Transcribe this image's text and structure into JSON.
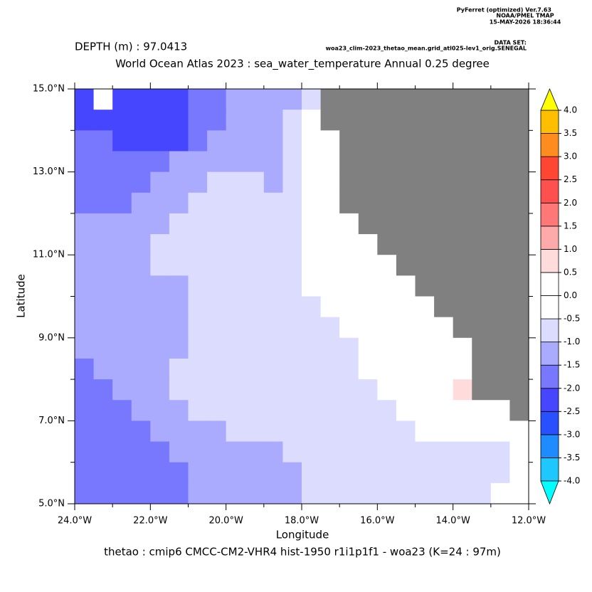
{
  "chart_data": {
    "type": "heatmap",
    "header": [
      "PyFerret (optimized) Ver.7.63",
      "NOAA/PMEL TMAP",
      "15-MAY-2026 18:36:44"
    ],
    "dataset_label": "DATA SET:",
    "dataset": "woa23_clim-2023_thetao_mean.grid_atl025-lev1_orig.SENEGAL",
    "subtitle": "DEPTH (m) : 97.0413",
    "title": "World Ocean Atlas 2023 : sea_water_temperature Annual  0.25 degree",
    "xlabel": "Longitude",
    "ylabel": "Latitude",
    "footer": "thetao : cmip6 CMCC-CM2-VHR4 hist-1950 r1i1p1f1 - woa23  (K=24 : 97m)",
    "xlim": [
      -24,
      -12
    ],
    "ylim": [
      5,
      15
    ],
    "xticks": [
      {
        "value": -24,
        "label": "24.0°W"
      },
      {
        "value": -22,
        "label": "22.0°W"
      },
      {
        "value": -20,
        "label": "20.0°W"
      },
      {
        "value": -18,
        "label": "18.0°W"
      },
      {
        "value": -16,
        "label": "16.0°W"
      },
      {
        "value": -14,
        "label": "14.0°W"
      },
      {
        "value": -12,
        "label": "12.0°W"
      }
    ],
    "xminorticks": [
      -23,
      -21,
      -19,
      -17,
      -15,
      -13
    ],
    "yticks": [
      {
        "value": 5,
        "label": "5.0°N"
      },
      {
        "value": 7,
        "label": "7.0°N"
      },
      {
        "value": 9,
        "label": "9.0°N"
      },
      {
        "value": 11,
        "label": "11.0°N"
      },
      {
        "value": 13,
        "label": "13.0°N"
      },
      {
        "value": 15,
        "label": "15.0°N"
      }
    ],
    "yminorticks": [
      6,
      8,
      10,
      12,
      14
    ],
    "missing_color": "#808080",
    "levels": [
      {
        "value": -4,
        "label": "-4.0"
      },
      {
        "value": -3.5,
        "label": "-3.5"
      },
      {
        "value": -3,
        "label": "-3.0"
      },
      {
        "value": -2.5,
        "label": "-2.5"
      },
      {
        "value": -2,
        "label": "-2.0"
      },
      {
        "value": -1.5,
        "label": "-1.5"
      },
      {
        "value": -1,
        "label": "-1.0"
      },
      {
        "value": -0.5,
        "label": "-0.5"
      },
      {
        "value": 0,
        "label": "0.0"
      },
      {
        "value": 0.5,
        "label": "0.5"
      },
      {
        "value": 1,
        "label": "1.0"
      },
      {
        "value": 1.5,
        "label": "1.5"
      },
      {
        "value": 2,
        "label": "2.0"
      },
      {
        "value": 2.5,
        "label": "2.5"
      },
      {
        "value": 3,
        "label": "3.0"
      },
      {
        "value": 3.5,
        "label": "3.5"
      },
      {
        "value": 4,
        "label": "4.0"
      }
    ],
    "colors": [
      "#00ffff",
      "#1ec8ff",
      "#1e8cff",
      "#2850ff",
      "#4646ff",
      "#7878ff",
      "#aaaaff",
      "#dcdcff",
      "#ffffff",
      "#ffffff",
      "#ffdcdc",
      "#ffaaaa",
      "#ff7878",
      "#ff5050",
      "#ff4632",
      "#ff8c1e",
      "#ffbe00",
      "#ffff00"
    ],
    "x": [
      -23.75,
      -23.25,
      -22.75,
      -22.25,
      -21.75,
      -21.25,
      -20.75,
      -20.25,
      -19.75,
      -19.25,
      -18.75,
      -18.25,
      -17.75,
      -17.25,
      -16.75,
      -16.25,
      -15.75,
      -15.25,
      -14.75,
      -14.25,
      -13.75,
      -13.25,
      -12.75,
      -12.25
    ],
    "y": [
      14.75,
      14.25,
      13.75,
      13.25,
      12.75,
      12.25,
      11.75,
      11.25,
      10.75,
      10.25,
      9.75,
      9.25,
      8.75,
      8.25,
      7.75,
      7.25,
      6.75,
      6.25,
      5.75,
      5.25
    ],
    "z": [
      [
        -2.25,
        -0.25,
        -2.25,
        -2.25,
        -2.25,
        -2.25,
        -1.75,
        -1.75,
        -1.25,
        -1.25,
        -1.25,
        -1.25,
        -0.75,
        null,
        null,
        null,
        null,
        null,
        null,
        null,
        null,
        null,
        null,
        null
      ],
      [
        -2.25,
        -2.25,
        -2.25,
        -2.25,
        -2.25,
        -2.25,
        -1.75,
        -1.75,
        -1.25,
        -1.25,
        -1.25,
        -0.75,
        -0.25,
        null,
        null,
        null,
        null,
        null,
        null,
        null,
        null,
        null,
        null,
        null
      ],
      [
        -1.75,
        -1.75,
        -2.25,
        -2.25,
        -2.25,
        -2.25,
        -1.75,
        -1.25,
        -1.25,
        -1.25,
        -1.25,
        -0.75,
        -0.25,
        -0.25,
        null,
        null,
        null,
        null,
        null,
        null,
        null,
        null,
        null,
        null
      ],
      [
        -1.75,
        -1.75,
        -1.75,
        -1.75,
        -1.75,
        -1.25,
        -1.25,
        -1.25,
        -1.25,
        -1.25,
        -1.25,
        -0.75,
        -0.25,
        -0.25,
        null,
        null,
        null,
        null,
        null,
        null,
        null,
        null,
        null,
        null
      ],
      [
        -1.75,
        -1.75,
        -1.75,
        -1.75,
        -1.25,
        -1.25,
        -1.25,
        -0.75,
        -0.75,
        -0.75,
        -1.25,
        -0.75,
        -0.25,
        -0.25,
        null,
        null,
        null,
        null,
        null,
        null,
        null,
        null,
        null,
        null
      ],
      [
        -1.75,
        -1.75,
        -1.75,
        -1.25,
        -1.25,
        -1.25,
        -0.75,
        -0.75,
        -0.75,
        -0.75,
        -0.75,
        -0.75,
        -0.25,
        -0.25,
        null,
        null,
        null,
        null,
        null,
        null,
        null,
        null,
        null,
        null
      ],
      [
        -1.25,
        -1.25,
        -1.25,
        -1.25,
        -1.25,
        -0.75,
        -0.75,
        -0.75,
        -0.75,
        -0.75,
        -0.75,
        -0.75,
        -0.25,
        -0.25,
        -0.25,
        null,
        null,
        null,
        null,
        null,
        null,
        null,
        null,
        null
      ],
      [
        -1.25,
        -1.25,
        -1.25,
        -1.25,
        -0.75,
        -0.75,
        -0.75,
        -0.75,
        -0.75,
        -0.75,
        -0.75,
        -0.75,
        -0.25,
        -0.25,
        -0.25,
        -0.25,
        null,
        null,
        null,
        null,
        null,
        null,
        null,
        null
      ],
      [
        -1.25,
        -1.25,
        -1.25,
        -1.25,
        -0.75,
        -0.75,
        -0.75,
        -0.75,
        -0.75,
        -0.75,
        -0.75,
        -0.75,
        -0.25,
        -0.25,
        -0.25,
        -0.25,
        -0.25,
        null,
        null,
        null,
        null,
        null,
        null,
        null
      ],
      [
        -1.25,
        -1.25,
        -1.25,
        -1.25,
        -1.25,
        -1.25,
        -0.75,
        -0.75,
        -0.75,
        -0.75,
        -0.75,
        -0.75,
        -0.25,
        -0.25,
        -0.25,
        -0.25,
        -0.25,
        -0.25,
        null,
        null,
        null,
        null,
        null,
        null
      ],
      [
        -1.25,
        -1.25,
        -1.25,
        -1.25,
        -1.25,
        -1.25,
        -0.75,
        -0.75,
        -0.75,
        -0.75,
        -0.75,
        -0.75,
        -0.75,
        -0.25,
        -0.25,
        -0.25,
        -0.25,
        -0.25,
        -0.25,
        null,
        null,
        null,
        null,
        null
      ],
      [
        -1.25,
        -1.25,
        -1.25,
        -1.25,
        -1.25,
        -1.25,
        -0.75,
        -0.75,
        -0.75,
        -0.75,
        -0.75,
        -0.75,
        -0.75,
        -0.75,
        -0.25,
        -0.25,
        -0.25,
        -0.25,
        -0.25,
        -0.25,
        null,
        null,
        null,
        null
      ],
      [
        -1.25,
        -1.25,
        -1.25,
        -1.25,
        -1.25,
        -1.25,
        -0.75,
        -0.75,
        -0.75,
        -0.75,
        -0.75,
        -0.75,
        -0.75,
        -0.75,
        -0.75,
        -0.25,
        -0.25,
        -0.25,
        -0.25,
        -0.25,
        -0.25,
        null,
        null,
        null
      ],
      [
        -1.75,
        -1.25,
        -1.25,
        -1.25,
        -1.25,
        -0.75,
        -0.75,
        -0.75,
        -0.75,
        -0.75,
        -0.75,
        -0.75,
        -0.75,
        -0.75,
        -0.75,
        -0.25,
        -0.25,
        -0.25,
        -0.25,
        -0.25,
        -0.25,
        null,
        null,
        null
      ],
      [
        -1.75,
        -1.75,
        -1.25,
        -1.25,
        -1.25,
        -0.75,
        -0.75,
        -0.75,
        -0.75,
        -0.75,
        -0.75,
        -0.75,
        -0.75,
        -0.75,
        -0.75,
        -0.75,
        -0.25,
        -0.25,
        -0.25,
        -0.25,
        0.75,
        null,
        null,
        null
      ],
      [
        -1.75,
        -1.75,
        -1.75,
        -1.25,
        -1.25,
        -1.25,
        -0.75,
        -0.75,
        -0.75,
        -0.75,
        -0.75,
        -0.75,
        -0.75,
        -0.75,
        -0.75,
        -0.75,
        -0.75,
        -0.25,
        -0.25,
        -0.25,
        -0.25,
        -0.25,
        -0.25,
        null
      ],
      [
        -1.75,
        -1.75,
        -1.75,
        -1.75,
        -1.25,
        -1.25,
        -1.25,
        -1.25,
        -0.75,
        -0.75,
        -0.75,
        -0.75,
        -0.75,
        -0.75,
        -0.75,
        -0.75,
        -0.75,
        -0.75,
        -0.25,
        -0.25,
        -0.25,
        -0.25,
        -0.25,
        -0.25
      ],
      [
        -1.75,
        -1.75,
        -1.75,
        -1.75,
        -1.75,
        -1.25,
        -1.25,
        -1.25,
        -1.25,
        -1.25,
        -1.25,
        -0.75,
        -0.75,
        -0.75,
        -0.75,
        -0.75,
        -0.75,
        -0.75,
        -0.75,
        -0.75,
        -0.75,
        -0.75,
        -0.75,
        -0.25
      ],
      [
        -1.75,
        -1.75,
        -1.75,
        -1.75,
        -1.75,
        -1.75,
        -1.25,
        -1.25,
        -1.25,
        -1.25,
        -1.25,
        -1.25,
        -0.75,
        -0.75,
        -0.75,
        -0.75,
        -0.75,
        -0.75,
        -0.75,
        -0.75,
        -0.75,
        -0.75,
        -0.75,
        -0.25
      ],
      [
        -1.75,
        -1.75,
        -1.75,
        -1.75,
        -1.75,
        -1.75,
        -1.25,
        -1.25,
        -1.25,
        -1.25,
        -1.25,
        -1.25,
        -0.75,
        -0.75,
        -0.75,
        -0.75,
        -0.75,
        -0.75,
        -0.75,
        -0.75,
        -0.75,
        -0.75,
        -0.25,
        -0.25
      ]
    ]
  }
}
